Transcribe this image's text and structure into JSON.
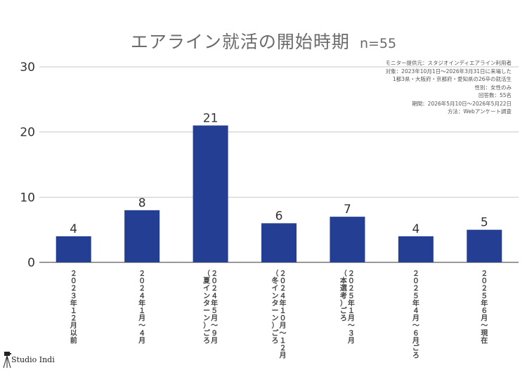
{
  "chart_data": {
    "type": "bar",
    "title": "エアライン就活の開始時期",
    "sample_size": "n=55",
    "categories": [
      "２０２３年１２月以前",
      "２０２４年１月〜４月",
      "２０２４年５月〜９月（夏インターン）ごろ",
      "２０２４年１０月〜１２月（冬インターン）ごろ",
      "２０２５年１月〜３月（本選考）ごろ",
      "２０２５年４月〜６月ごろ",
      "２０２５年６月〜現在"
    ],
    "category_lines": [
      [
        "２０２３年１２月以前"
      ],
      [
        "２０２４年１月〜４月"
      ],
      [
        "２０２４年５月〜９月",
        "（夏インターン）ごろ"
      ],
      [
        "２０２４年１０月〜１２月",
        "（冬インターン）ごろ"
      ],
      [
        "２０２５年１月〜３月",
        "（本選考）ごろ"
      ],
      [
        "２０２５年４月〜６月ごろ"
      ],
      [
        "２０２５年６月〜現在"
      ]
    ],
    "values": [
      4,
      8,
      21,
      6,
      7,
      4,
      5
    ],
    "ylim": [
      0,
      30
    ],
    "yticks": [
      0,
      10,
      20,
      30
    ],
    "xlabel": "",
    "ylabel": "",
    "bar_color": "#233e93",
    "grid": true,
    "legend": "none"
  },
  "survey_notes": [
    "モニター提供元：スタジオインディエアライン利用者",
    "対象：2023年10月1日〜2026年3月31日に来場した",
    "1都3県・大阪府・京都府・愛知県の26卒の就活生",
    "性別：女性のみ",
    "回答数：55名",
    "期間：2026年5月10日〜2026年5月22日",
    "方法：Webアンケート調査"
  ],
  "logo": {
    "text": "Studio Indi",
    "icon": "camera-tripod-icon"
  }
}
